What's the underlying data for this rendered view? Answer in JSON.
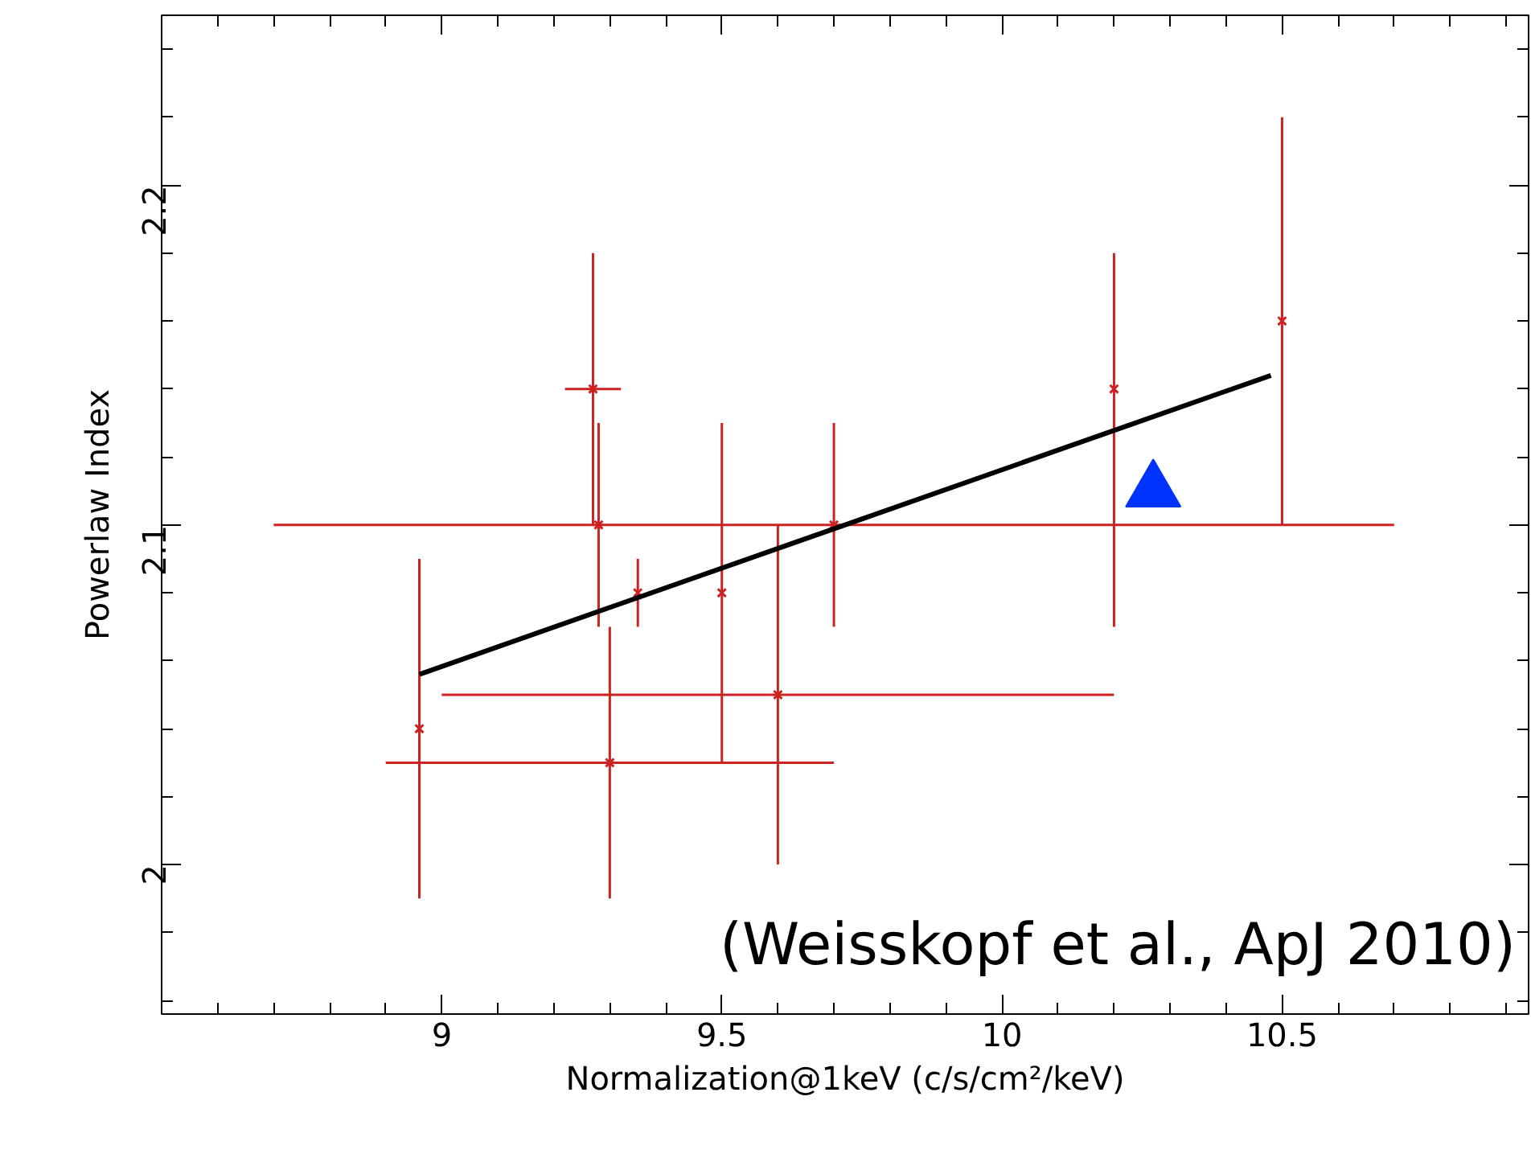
{
  "chart_data": {
    "type": "scatter",
    "xlabel": "Normalization@1keV (c/s/cm²/keV)",
    "ylabel": "Powerlaw Index",
    "xlim": [
      8.5,
      10.94
    ],
    "ylim": [
      1.956,
      2.25
    ],
    "xticks": [
      9,
      9.5,
      10,
      10.5
    ],
    "yticks": [
      2,
      2.1,
      2.2
    ],
    "grid": false,
    "series": [
      {
        "color": "#cc2222",
        "marker": "cross",
        "x": [
          8.96,
          9.3,
          9.27,
          9.28,
          9.35,
          9.5,
          9.6,
          9.7,
          10.2,
          10.5
        ],
        "values": [
          2.04,
          2.03,
          2.14,
          2.1,
          2.08,
          2.08,
          2.05,
          2.1,
          2.14,
          2.16
        ],
        "errors": [
          [
            1.99,
            2.09
          ],
          [
            1.99,
            2.07
          ],
          [
            2.1,
            2.18
          ],
          [
            2.07,
            2.13
          ],
          [
            2.07,
            2.09
          ],
          [
            2.03,
            2.13
          ],
          [
            2.0,
            2.1
          ],
          [
            2.07,
            2.13
          ],
          [
            2.07,
            2.18
          ],
          [
            2.1,
            2.22
          ]
        ],
        "xerrors": [
          null,
          [
            8.9,
            9.7
          ],
          [
            9.22,
            9.32
          ],
          [
            8.7,
            10.7
          ],
          null,
          null,
          [
            9.0,
            10.2
          ],
          null,
          null,
          null
        ]
      },
      {
        "type": "line",
        "color": "#000000",
        "x": [
          8.96,
          10.48
        ],
        "values": [
          2.056,
          2.144
        ]
      },
      {
        "color": "#0033ff",
        "marker": "triangle",
        "x": [
          10.27
        ],
        "values": [
          2.11
        ]
      }
    ],
    "annotations": [
      "(Weisskopf et al., ApJ 2010)"
    ]
  }
}
